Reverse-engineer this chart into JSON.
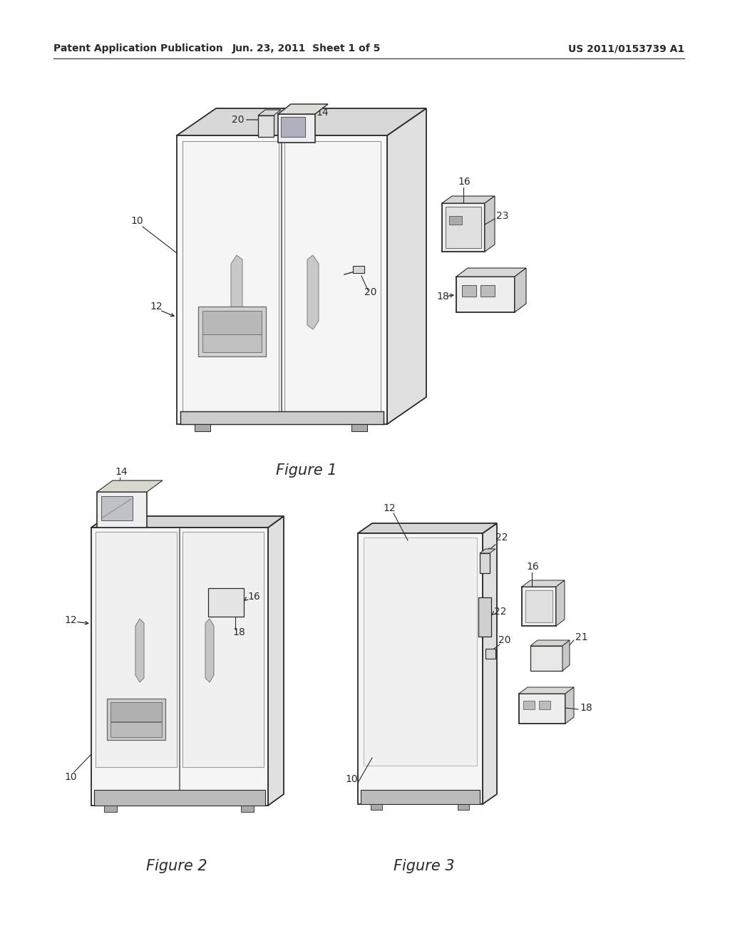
{
  "background_color": "#ffffff",
  "header_left": "Patent Application Publication",
  "header_center": "Jun. 23, 2011  Sheet 1 of 5",
  "header_right": "US 2011/0153739 A1",
  "label_fontsize": 10,
  "caption_fontsize": 15,
  "line_color": "#2a2a2a",
  "line_width": 1.3,
  "figure1_caption": "Figure 1",
  "figure2_caption": "Figure 2",
  "figure3_caption": "Figure 3"
}
